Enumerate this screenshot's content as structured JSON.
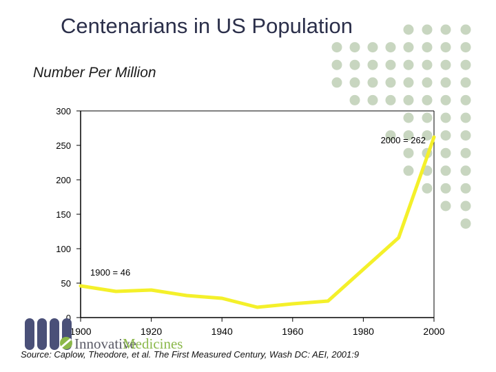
{
  "title": "Centenarians in US Population",
  "subtitle": "Number Per Million",
  "source": "Source: Caplow, Theodore, et al. The First Measured Century, Wash DC: AEI, 2001:9",
  "logo": {
    "word1": "Innovative",
    "word2": "Medicines"
  },
  "colors": {
    "line": "#f4f02a",
    "axis": "#000000",
    "dots": "#c8d6c0",
    "title": "#2b2f4a",
    "logo_bars": "#4a5078",
    "logo_green": "#8bb84a"
  },
  "chart_data": {
    "type": "line",
    "title": "",
    "xlabel": "",
    "ylabel": "Number Per Million",
    "xlim": [
      1900,
      2000
    ],
    "ylim": [
      0,
      300
    ],
    "x_ticks": [
      1900,
      1920,
      1940,
      1960,
      1980,
      2000
    ],
    "y_ticks": [
      0,
      50,
      100,
      150,
      200,
      250,
      300
    ],
    "grid": false,
    "series": [
      {
        "x": [
          1900,
          1910,
          1920,
          1930,
          1940,
          1950,
          1960,
          1970,
          1980,
          1990,
          2000
        ],
        "y": [
          46,
          38,
          40,
          32,
          28,
          15,
          20,
          24,
          70,
          116,
          262
        ]
      }
    ],
    "annotations": [
      {
        "text": "2000 = 262",
        "x": 2000,
        "y": 262
      },
      {
        "text": "1900 = 46",
        "x": 1900,
        "y": 46
      }
    ]
  }
}
